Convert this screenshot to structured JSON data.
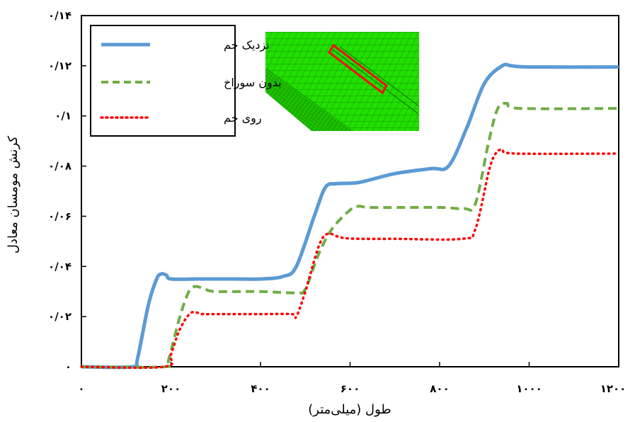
{
  "chart_data": {
    "type": "line",
    "xlabel": "طول (میلی‌متر)",
    "ylabel": "کرنش مومسان معادل",
    "xlim": [
      0,
      1200
    ],
    "ylim": [
      0,
      0.14
    ],
    "x_ticks": [
      0,
      200,
      400,
      600,
      800,
      1000,
      1200
    ],
    "x_tick_labels": [
      "۰",
      "۲۰۰",
      "۴۰۰",
      "۶۰۰",
      "۸۰۰",
      "۱۰۰۰",
      "۱۲۰۰"
    ],
    "y_ticks": [
      0,
      0.02,
      0.04,
      0.06,
      0.08,
      0.1,
      0.12,
      0.14
    ],
    "y_tick_labels": [
      "۰",
      "۰/۰۲",
      "۰/۰۴",
      "۰/۰۶",
      "۰/۰۸",
      "۰/۱",
      "۰/۱۲",
      "۰/۱۴"
    ],
    "legend_position": "top-left",
    "grid": false,
    "inset": {
      "description_icon": "fem-mesh-inset",
      "mesh_color": "#22e000",
      "highlight_color": "#ee1111"
    },
    "series": [
      {
        "name": "نزدیک خم",
        "color": "#5b9bd5",
        "style": "solid",
        "points": [
          [
            0,
            0
          ],
          [
            115,
            0
          ],
          [
            125,
            0.003
          ],
          [
            150,
            0.025
          ],
          [
            168,
            0.035
          ],
          [
            178,
            0.037
          ],
          [
            190,
            0.0365
          ],
          [
            200,
            0.035
          ],
          [
            260,
            0.035
          ],
          [
            340,
            0.035
          ],
          [
            400,
            0.035
          ],
          [
            450,
            0.036
          ],
          [
            480,
            0.04
          ],
          [
            520,
            0.06
          ],
          [
            545,
            0.0715
          ],
          [
            570,
            0.073
          ],
          [
            620,
            0.0735
          ],
          [
            700,
            0.077
          ],
          [
            780,
            0.079
          ],
          [
            820,
            0.08
          ],
          [
            860,
            0.095
          ],
          [
            900,
            0.113
          ],
          [
            940,
            0.12
          ],
          [
            960,
            0.12
          ],
          [
            1000,
            0.1195
          ],
          [
            1200,
            0.1195
          ]
        ]
      },
      {
        "name": "بدون سوراخ",
        "color": "#70ad47",
        "style": "dashed",
        "points": [
          [
            0,
            0
          ],
          [
            185,
            0
          ],
          [
            195,
            0.003
          ],
          [
            220,
            0.02
          ],
          [
            240,
            0.03
          ],
          [
            255,
            0.032
          ],
          [
            275,
            0.031
          ],
          [
            300,
            0.03
          ],
          [
            400,
            0.03
          ],
          [
            480,
            0.0295
          ],
          [
            500,
            0.031
          ],
          [
            530,
            0.045
          ],
          [
            560,
            0.055
          ],
          [
            600,
            0.0625
          ],
          [
            620,
            0.064
          ],
          [
            650,
            0.0635
          ],
          [
            800,
            0.0635
          ],
          [
            855,
            0.063
          ],
          [
            880,
            0.065
          ],
          [
            910,
            0.09
          ],
          [
            930,
            0.103
          ],
          [
            950,
            0.105
          ],
          [
            980,
            0.103
          ],
          [
            1200,
            0.103
          ]
        ]
      },
      {
        "name": "روی خم",
        "color": "#ff0000",
        "style": "dotted",
        "points": [
          [
            0,
            0
          ],
          [
            185,
            0
          ],
          [
            200,
            0.005
          ],
          [
            220,
            0.015
          ],
          [
            245,
            0.0215
          ],
          [
            270,
            0.021
          ],
          [
            300,
            0.021
          ],
          [
            400,
            0.021
          ],
          [
            470,
            0.021
          ],
          [
            480,
            0.02
          ],
          [
            500,
            0.03
          ],
          [
            530,
            0.048
          ],
          [
            550,
            0.053
          ],
          [
            580,
            0.0515
          ],
          [
            620,
            0.051
          ],
          [
            700,
            0.051
          ],
          [
            850,
            0.051
          ],
          [
            880,
            0.055
          ],
          [
            910,
            0.078
          ],
          [
            925,
            0.085
          ],
          [
            940,
            0.0865
          ],
          [
            970,
            0.085
          ],
          [
            1200,
            0.085
          ]
        ]
      }
    ]
  }
}
